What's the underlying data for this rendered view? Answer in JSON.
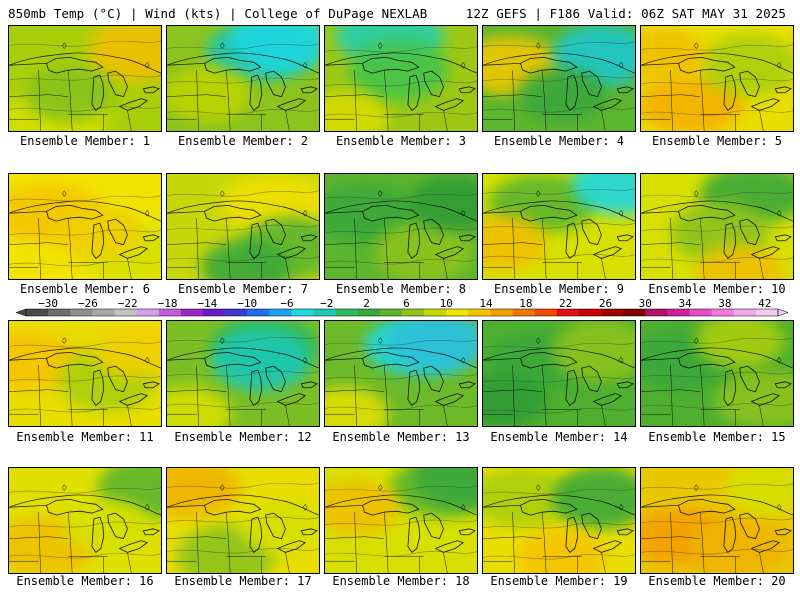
{
  "header": {
    "left": "850mb Temp (°C) | Wind (kts) | College of DuPage NEXLAB",
    "right": "12Z GEFS | F186 Valid: 06Z SAT MAY 31 2025"
  },
  "members": [
    {
      "label": "Ensemble Member: 1",
      "base": "#a9cf0a",
      "blobs": [
        {
          "c": "#d7e000"
        },
        {
          "c": "#f0c000"
        },
        {
          "c": "#86c11e"
        }
      ]
    },
    {
      "label": "Ensemble Member: 2",
      "base": "#8cc31c",
      "blobs": [
        {
          "c": "#1ec8b4"
        },
        {
          "c": "#1fd7e0"
        },
        {
          "c": "#bcd400"
        }
      ]
    },
    {
      "label": "Ensemble Member: 3",
      "base": "#9cc814",
      "blobs": [
        {
          "c": "#28cfb0"
        },
        {
          "c": "#45c44a"
        },
        {
          "c": "#d7dc00"
        }
      ]
    },
    {
      "label": "Ensemble Member: 4",
      "base": "#5cb52e",
      "blobs": [
        {
          "c": "#f0c800"
        },
        {
          "c": "#1fc8cc"
        },
        {
          "c": "#3aa83a"
        }
      ]
    },
    {
      "label": "Ensemble Member: 5",
      "base": "#e8de00",
      "blobs": [
        {
          "c": "#f5b000"
        },
        {
          "c": "#a9cf0a"
        },
        {
          "c": "#f0c000"
        }
      ]
    },
    {
      "label": "Ensemble Member: 6",
      "base": "#f2e400",
      "blobs": [
        {
          "c": "#f5c400"
        },
        {
          "c": "#d7e000"
        },
        {
          "c": "#f0d000"
        }
      ]
    },
    {
      "label": "Ensemble Member: 7",
      "base": "#c6d80a",
      "blobs": [
        {
          "c": "#f0e000"
        },
        {
          "c": "#5cb52e"
        },
        {
          "c": "#3aa83a"
        }
      ]
    },
    {
      "label": "Ensemble Member: 8",
      "base": "#5cb52e",
      "blobs": [
        {
          "c": "#3aa83a"
        },
        {
          "c": "#8cc31c"
        },
        {
          "c": "#2f9c35"
        }
      ]
    },
    {
      "label": "Ensemble Member: 9",
      "base": "#d7e000",
      "blobs": [
        {
          "c": "#5cb52e"
        },
        {
          "c": "#1fd7e0"
        },
        {
          "c": "#f0c000"
        }
      ]
    },
    {
      "label": "Ensemble Member: 10",
      "base": "#d7e000",
      "blobs": [
        {
          "c": "#3aa83a"
        },
        {
          "c": "#8cc31c"
        },
        {
          "c": "#f0c000"
        }
      ]
    },
    {
      "label": "Ensemble Member: 11",
      "base": "#e8de00",
      "blobs": [
        {
          "c": "#f5c400"
        },
        {
          "c": "#a9cf0a"
        },
        {
          "c": "#f0d000"
        }
      ]
    },
    {
      "label": "Ensemble Member: 12",
      "base": "#7cbf24",
      "blobs": [
        {
          "c": "#2fba5e"
        },
        {
          "c": "#1ec8b4"
        },
        {
          "c": "#d7e000"
        }
      ]
    },
    {
      "label": "Ensemble Member: 13",
      "base": "#6cba28",
      "blobs": [
        {
          "c": "#1fd7e0"
        },
        {
          "c": "#2fc0d8"
        },
        {
          "c": "#e0e000"
        }
      ]
    },
    {
      "label": "Ensemble Member: 14",
      "base": "#4fb030",
      "blobs": [
        {
          "c": "#3aa83a"
        },
        {
          "c": "#8cc31c"
        },
        {
          "c": "#2f9c35"
        }
      ]
    },
    {
      "label": "Ensemble Member: 15",
      "base": "#4fb030",
      "blobs": [
        {
          "c": "#8cc31c"
        },
        {
          "c": "#3aa83a"
        },
        {
          "c": "#a9cf0a"
        }
      ]
    },
    {
      "label": "Ensemble Member: 16",
      "base": "#e0e000",
      "blobs": [
        {
          "c": "#f0c000"
        },
        {
          "c": "#5cb52e"
        },
        {
          "c": "#d7e000"
        }
      ]
    },
    {
      "label": "Ensemble Member: 17",
      "base": "#e8de00",
      "blobs": [
        {
          "c": "#f0b400"
        },
        {
          "c": "#8cc31c"
        },
        {
          "c": "#d7e000"
        }
      ]
    },
    {
      "label": "Ensemble Member: 18",
      "base": "#d7e000",
      "blobs": [
        {
          "c": "#5cb52e"
        },
        {
          "c": "#3aa83a"
        },
        {
          "c": "#f0c000"
        }
      ]
    },
    {
      "label": "Ensemble Member: 19",
      "base": "#e8de00",
      "blobs": [
        {
          "c": "#a9cf0a"
        },
        {
          "c": "#3aa83a"
        },
        {
          "c": "#f5c400"
        }
      ]
    },
    {
      "label": "Ensemble Member: 20",
      "base": "#e8c800",
      "blobs": [
        {
          "c": "#f5a000"
        },
        {
          "c": "#f0b400"
        },
        {
          "c": "#d7e000"
        }
      ]
    }
  ],
  "colorbar": {
    "labels": [
      "−30",
      "−26",
      "−22",
      "−18",
      "−14",
      "−10",
      "−6",
      "−2",
      "2",
      "6",
      "10",
      "14",
      "18",
      "22",
      "26",
      "30",
      "34",
      "38",
      "42"
    ],
    "colors": [
      "#4a4a4a",
      "#6e6e6e",
      "#8e8e8e",
      "#a8a8a8",
      "#c2c2c2",
      "#d6a0e6",
      "#c060d8",
      "#9a28c8",
      "#6a1cc8",
      "#3a3ad0",
      "#1e6ef0",
      "#1ea0f0",
      "#1fd7e0",
      "#1ec8b4",
      "#2fba5e",
      "#3aa83a",
      "#5cb52e",
      "#8cc31c",
      "#c6d80a",
      "#f2e400",
      "#f5c400",
      "#f5a000",
      "#f07800",
      "#ee4a00",
      "#e01010",
      "#c80000",
      "#a00000",
      "#800000",
      "#b0106a",
      "#d01e9c",
      "#e84cc8",
      "#f07ade",
      "#f0a8ec",
      "#f4c8f0"
    ]
  }
}
